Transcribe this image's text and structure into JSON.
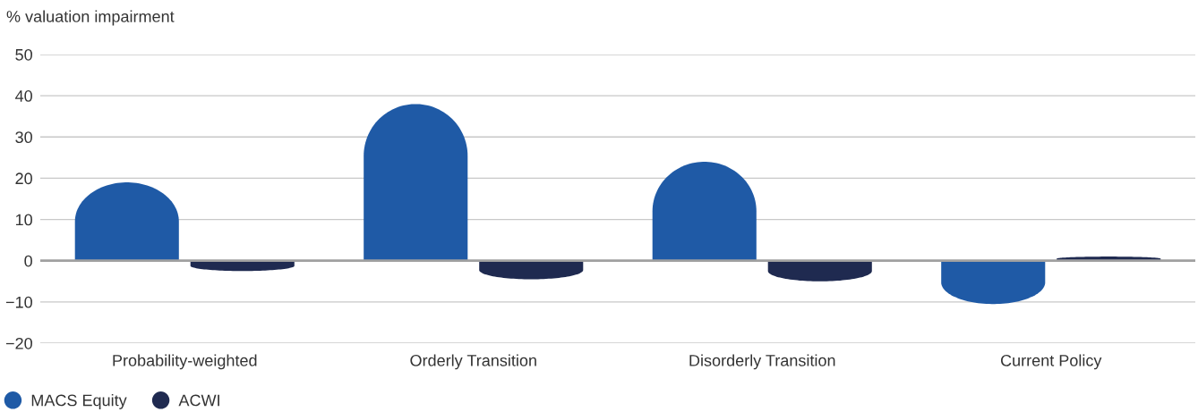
{
  "chart_data": {
    "type": "bar",
    "ylabel": "% valuation impairment",
    "categories": [
      "Probability-weighted",
      "Orderly Transition",
      "Disorderly Transition",
      "Current Policy"
    ],
    "series": [
      {
        "name": "MACS Equity",
        "color": "#1f5aa6",
        "values": [
          19,
          38,
          24,
          -10.5
        ]
      },
      {
        "name": "ACWI",
        "color": "#1f2a50",
        "values": [
          -2.5,
          -4.5,
          -5,
          1
        ]
      }
    ],
    "ylim": [
      -20,
      50
    ],
    "yticks": [
      {
        "value": -20,
        "label": "−20"
      },
      {
        "value": -10,
        "label": "−10"
      },
      0,
      10,
      20,
      30,
      40,
      50
    ],
    "grid": "y",
    "legend": "bottom left",
    "ref_lines": [
      {
        "axis": "y",
        "value": 0,
        "color": "#a0a0a0"
      }
    ]
  }
}
